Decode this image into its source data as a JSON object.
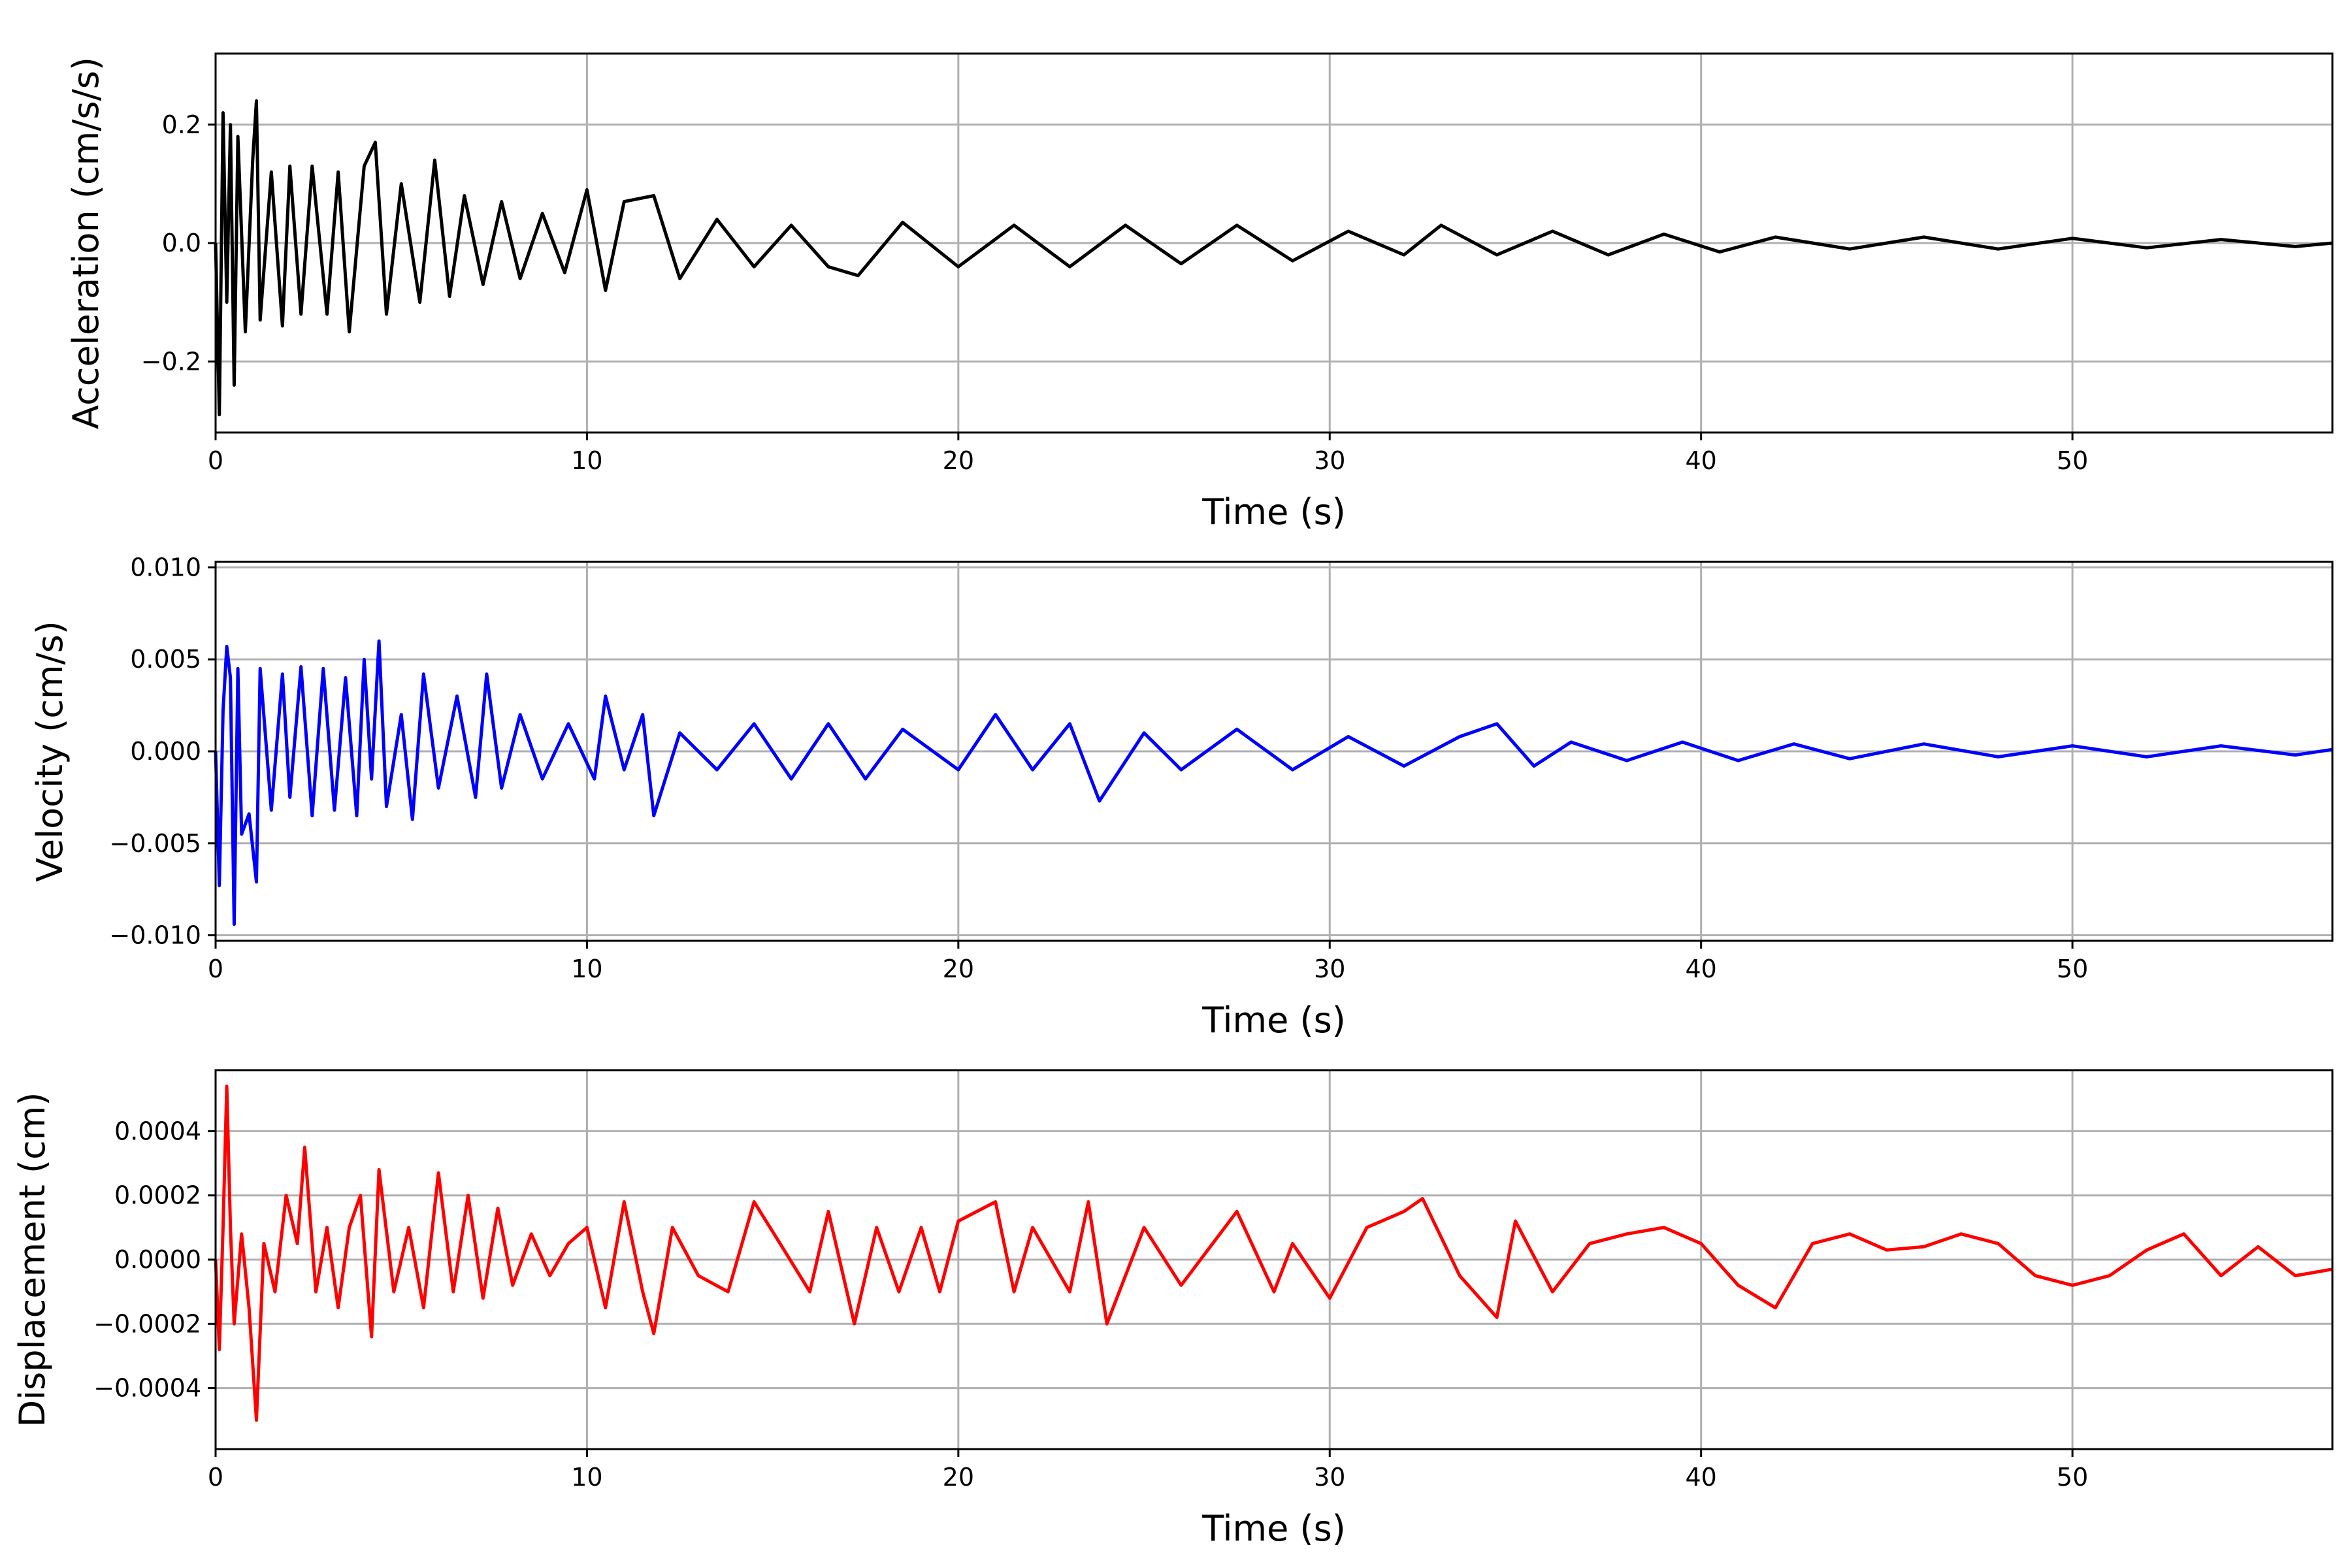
{
  "chart_data": [
    {
      "type": "line",
      "title": "",
      "xlabel": "Time (s)",
      "ylabel": "Acceleration (cm/s/s)",
      "xlim": [
        0,
        57
      ],
      "ylim": [
        -0.32,
        0.32
      ],
      "xticks": [
        0,
        10,
        20,
        30,
        40,
        50
      ],
      "xtick_labels": [
        "0",
        "10",
        "20",
        "30",
        "40",
        "50"
      ],
      "yticks": [
        -0.2,
        0.0,
        0.2
      ],
      "ytick_labels": [
        "−0.2",
        "0.0",
        "0.2"
      ],
      "grid": true,
      "color": "#000000",
      "series": [
        {
          "x": [
            0.0,
            0.1,
            0.2,
            0.3,
            0.4,
            0.5,
            0.6,
            0.8,
            1.0,
            1.1,
            1.2,
            1.5,
            1.8,
            2.0,
            2.3,
            2.6,
            3.0,
            3.3,
            3.6,
            4.0,
            4.3,
            4.6,
            5.0,
            5.5,
            5.9,
            6.3,
            6.7,
            7.2,
            7.7,
            8.2,
            8.8,
            9.4,
            10.0,
            10.5,
            11.0,
            11.8,
            12.5,
            13.5,
            14.5,
            15.5,
            16.5,
            17.3,
            18.5,
            20.0,
            21.5,
            23.0,
            24.5,
            26.0,
            27.5,
            29.0,
            30.5,
            32.0,
            33.0,
            34.5,
            36.0,
            37.5,
            39.0,
            40.5,
            42.0,
            44.0,
            46.0,
            48.0,
            50.0,
            52.0,
            54.0,
            56.0,
            57.0
          ],
          "y": [
            0.0,
            -0.29,
            0.22,
            -0.1,
            0.2,
            -0.24,
            0.18,
            -0.15,
            0.14,
            0.24,
            -0.13,
            0.12,
            -0.14,
            0.13,
            -0.12,
            0.13,
            -0.12,
            0.12,
            -0.15,
            0.13,
            0.17,
            -0.12,
            0.1,
            -0.1,
            0.14,
            -0.09,
            0.08,
            -0.07,
            0.07,
            -0.06,
            0.05,
            -0.05,
            0.09,
            -0.08,
            0.07,
            0.08,
            -0.06,
            0.04,
            -0.04,
            0.03,
            -0.04,
            -0.055,
            0.035,
            -0.04,
            0.03,
            -0.04,
            0.03,
            -0.035,
            0.03,
            -0.03,
            0.02,
            -0.02,
            0.03,
            -0.02,
            0.02,
            -0.02,
            0.015,
            -0.015,
            0.01,
            -0.01,
            0.01,
            -0.01,
            0.008,
            -0.008,
            0.006,
            -0.006,
            0.0
          ]
        }
      ]
    },
    {
      "type": "line",
      "title": "",
      "xlabel": "Time (s)",
      "ylabel": "Velocity (cm/s)",
      "xlim": [
        0,
        57
      ],
      "ylim": [
        -0.0103,
        0.0103
      ],
      "xticks": [
        0,
        10,
        20,
        30,
        40,
        50
      ],
      "xtick_labels": [
        "0",
        "10",
        "20",
        "30",
        "40",
        "50"
      ],
      "yticks": [
        -0.01,
        -0.005,
        0.0,
        0.005,
        0.01
      ],
      "ytick_labels": [
        "−0.010",
        "−0.005",
        "0.000",
        "0.005",
        "0.010"
      ],
      "grid": true,
      "color": "#0000ff",
      "series": [
        {
          "x": [
            0.0,
            0.1,
            0.2,
            0.3,
            0.4,
            0.5,
            0.6,
            0.7,
            0.9,
            1.1,
            1.2,
            1.5,
            1.8,
            2.0,
            2.3,
            2.6,
            2.9,
            3.2,
            3.5,
            3.8,
            4.0,
            4.2,
            4.4,
            4.6,
            5.0,
            5.3,
            5.6,
            6.0,
            6.5,
            7.0,
            7.3,
            7.7,
            8.2,
            8.8,
            9.5,
            10.2,
            10.5,
            11.0,
            11.5,
            11.8,
            12.5,
            13.5,
            14.5,
            15.5,
            16.5,
            17.5,
            18.5,
            20.0,
            21.0,
            22.0,
            23.0,
            23.8,
            25.0,
            26.0,
            27.5,
            29.0,
            30.5,
            32.0,
            33.5,
            34.5,
            35.5,
            36.5,
            38.0,
            39.5,
            41.0,
            42.5,
            44.0,
            46.0,
            48.0,
            50.0,
            52.0,
            54.0,
            56.0,
            57.0
          ],
          "y": [
            0.0,
            -0.0073,
            0.0022,
            0.0057,
            0.004,
            -0.0094,
            0.0045,
            -0.0045,
            -0.0034,
            -0.0071,
            0.0045,
            -0.0032,
            0.0042,
            -0.0025,
            0.0046,
            -0.0035,
            0.0045,
            -0.0032,
            0.004,
            -0.0035,
            0.005,
            -0.0015,
            0.006,
            -0.003,
            0.002,
            -0.0037,
            0.0042,
            -0.002,
            0.003,
            -0.0025,
            0.0042,
            -0.002,
            0.002,
            -0.0015,
            0.0015,
            -0.0015,
            0.003,
            -0.001,
            0.002,
            -0.0035,
            0.001,
            -0.001,
            0.0015,
            -0.0015,
            0.0015,
            -0.0015,
            0.0012,
            -0.001,
            0.002,
            -0.001,
            0.0015,
            -0.0027,
            0.001,
            -0.001,
            0.0012,
            -0.001,
            0.0008,
            -0.0008,
            0.0008,
            0.0015,
            -0.0008,
            0.0005,
            -0.0005,
            0.0005,
            -0.0005,
            0.0004,
            -0.0004,
            0.0004,
            -0.0003,
            0.0003,
            -0.0003,
            0.0003,
            -0.0002,
            0.0001
          ]
        }
      ]
    },
    {
      "type": "line",
      "title": "",
      "xlabel": "Time (s)",
      "ylabel": "Displacement (cm)",
      "xlim": [
        0,
        57
      ],
      "ylim": [
        -0.00059,
        0.00059
      ],
      "xticks": [
        0,
        10,
        20,
        30,
        40,
        50
      ],
      "xtick_labels": [
        "0",
        "10",
        "20",
        "30",
        "40",
        "50"
      ],
      "yticks": [
        -0.0004,
        -0.0002,
        0.0,
        0.0002,
        0.0004
      ],
      "ytick_labels": [
        "−0.0004",
        "−0.0002",
        "0.0000",
        "0.0002",
        "0.0004"
      ],
      "grid": true,
      "color": "#ff0000",
      "series": [
        {
          "x": [
            0.0,
            0.1,
            0.2,
            0.3,
            0.4,
            0.5,
            0.7,
            0.9,
            1.1,
            1.3,
            1.6,
            1.9,
            2.2,
            2.4,
            2.7,
            3.0,
            3.3,
            3.6,
            3.9,
            4.2,
            4.4,
            4.8,
            5.2,
            5.6,
            6.0,
            6.4,
            6.8,
            7.2,
            7.6,
            8.0,
            8.5,
            9.0,
            9.5,
            10.0,
            10.5,
            11.0,
            11.5,
            11.8,
            12.3,
            13.0,
            13.8,
            14.5,
            15.2,
            16.0,
            16.5,
            17.2,
            17.8,
            18.4,
            19.0,
            19.5,
            20.0,
            21.0,
            21.5,
            22.0,
            23.0,
            23.5,
            24.0,
            25.0,
            26.0,
            27.5,
            28.5,
            29.0,
            30.0,
            31.0,
            32.0,
            32.5,
            33.5,
            34.5,
            35.0,
            36.0,
            37.0,
            38.0,
            39.0,
            40.0,
            41.0,
            42.0,
            43.0,
            44.0,
            45.0,
            46.0,
            47.0,
            48.0,
            49.0,
            50.0,
            51.0,
            52.0,
            53.0,
            54.0,
            55.0,
            56.0,
            57.0
          ],
          "y": [
            0.0,
            -0.00028,
            0.0001,
            0.00054,
            0.0001,
            -0.0002,
            8e-05,
            -0.00015,
            -0.0005,
            5e-05,
            -0.0001,
            0.0002,
            5e-05,
            0.00035,
            -0.0001,
            0.0001,
            -0.00015,
            0.0001,
            0.0002,
            -0.00024,
            0.00028,
            -0.0001,
            0.0001,
            -0.00015,
            0.00027,
            -0.0001,
            0.0002,
            -0.00012,
            0.00016,
            -8e-05,
            8e-05,
            -5e-05,
            5e-05,
            0.0001,
            -0.00015,
            0.00018,
            -0.0001,
            -0.00023,
            0.0001,
            -5e-05,
            -0.0001,
            0.00018,
            5e-05,
            -0.0001,
            0.00015,
            -0.0002,
            0.0001,
            -0.0001,
            0.0001,
            -0.0001,
            0.00012,
            0.00018,
            -0.0001,
            0.0001,
            -0.0001,
            0.00018,
            -0.0002,
            0.0001,
            -8e-05,
            0.00015,
            -0.0001,
            5e-05,
            -0.00012,
            0.0001,
            0.00015,
            0.00019,
            -5e-05,
            -0.00018,
            0.00012,
            -0.0001,
            5e-05,
            8e-05,
            0.0001,
            5e-05,
            -8e-05,
            -0.00015,
            5e-05,
            8e-05,
            3e-05,
            4e-05,
            8e-05,
            5e-05,
            -5e-05,
            -8e-05,
            -5e-05,
            3e-05,
            8e-05,
            -5e-05,
            4e-05,
            -5e-05,
            -3e-05
          ]
        }
      ]
    }
  ]
}
